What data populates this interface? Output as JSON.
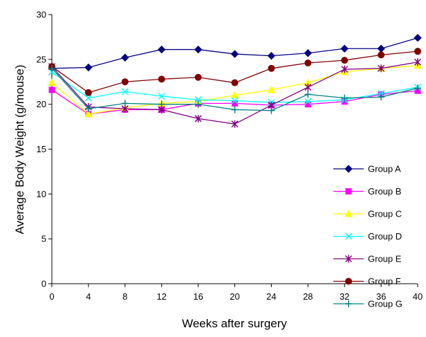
{
  "chart_data": {
    "type": "line",
    "title": "",
    "xlabel": "Weeks after surgery",
    "ylabel": "Average Body Weight (g/mouse)",
    "x": [
      0,
      4,
      8,
      12,
      16,
      20,
      24,
      28,
      32,
      36,
      40
    ],
    "xticks": [
      "0",
      "4",
      "8",
      "12",
      "16",
      "20",
      "24",
      "28",
      "32",
      "36",
      "40"
    ],
    "yticks": [
      "0",
      "5",
      "10",
      "15",
      "20",
      "25",
      "30"
    ],
    "ylim": [
      0,
      30
    ],
    "xlim": [
      0,
      40
    ],
    "grid": false,
    "legend_position": "right",
    "series": [
      {
        "name": "Group A",
        "color": "#000080",
        "marker": "diamond",
        "values": [
          24.0,
          24.1,
          25.2,
          26.1,
          26.1,
          25.6,
          25.4,
          25.7,
          26.2,
          26.2,
          27.4
        ]
      },
      {
        "name": "Group B",
        "color": "#ff00ff",
        "marker": "square",
        "values": [
          21.6,
          18.9,
          19.4,
          19.4,
          20.1,
          20.1,
          19.9,
          20.0,
          20.3,
          21.1,
          21.5
        ]
      },
      {
        "name": "Group C",
        "color": "#ffff00",
        "marker": "triangle",
        "values": [
          22.4,
          18.9,
          19.6,
          20.1,
          20.3,
          21.0,
          21.6,
          22.4,
          23.6,
          24.0,
          24.3
        ]
      },
      {
        "name": "Group D",
        "color": "#00ffff",
        "marker": "x",
        "values": [
          23.6,
          20.7,
          21.4,
          20.9,
          20.5,
          20.4,
          20.2,
          20.3,
          20.5,
          21.2,
          21.9
        ]
      },
      {
        "name": "Group E",
        "color": "#800080",
        "marker": "star",
        "values": [
          24.2,
          19.7,
          19.5,
          19.4,
          18.4,
          17.8,
          19.9,
          21.9,
          23.9,
          24.0,
          24.7
        ]
      },
      {
        "name": "Group F",
        "color": "#800000",
        "marker": "circle",
        "values": [
          24.2,
          21.3,
          22.5,
          22.8,
          23.0,
          22.4,
          24.0,
          24.6,
          24.9,
          25.5,
          25.9
        ]
      },
      {
        "name": "Group G",
        "color": "#008080",
        "marker": "plus",
        "values": [
          24.0,
          19.5,
          20.1,
          20.0,
          20.0,
          19.4,
          19.3,
          21.1,
          20.7,
          20.8,
          21.8
        ]
      }
    ]
  }
}
